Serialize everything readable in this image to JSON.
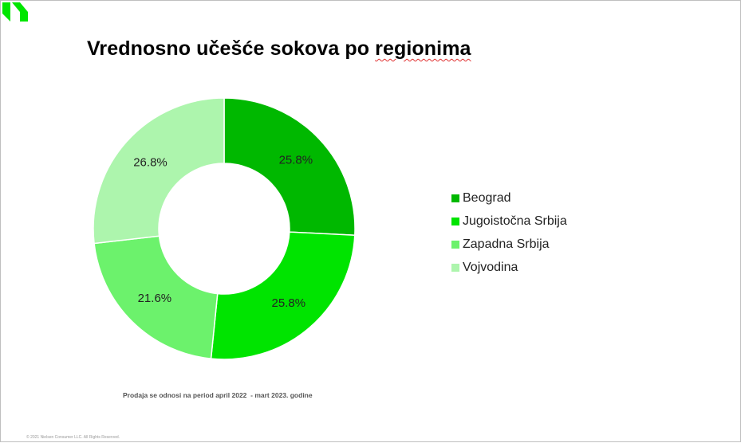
{
  "title_prefix": "Vrednosno učešće sokova po ",
  "title_suffix": "regionima",
  "footnote": "Prodaja se odnosi na period april 2022  - mart 2023. godine",
  "copyright": "© 2021 Nielsen Consumer LLC. All Rights Reserved.",
  "colors": {
    "accent_logo": "#00e600"
  },
  "chart_data": {
    "type": "pie",
    "variant": "donut",
    "title": "Vrednosno učešće sokova po regionima",
    "legend_position": "right",
    "categories": [
      "Beograd",
      "Jugoistočna Srbija",
      "Zapadna Srbija",
      "Vojvodina"
    ],
    "values": [
      25.8,
      25.8,
      21.6,
      26.8
    ],
    "labels": [
      "25.8%",
      "25.8%",
      "21.6%",
      "26.8%"
    ],
    "colors": [
      "#00b800",
      "#00e400",
      "#6cf26c",
      "#adf5ad"
    ]
  }
}
